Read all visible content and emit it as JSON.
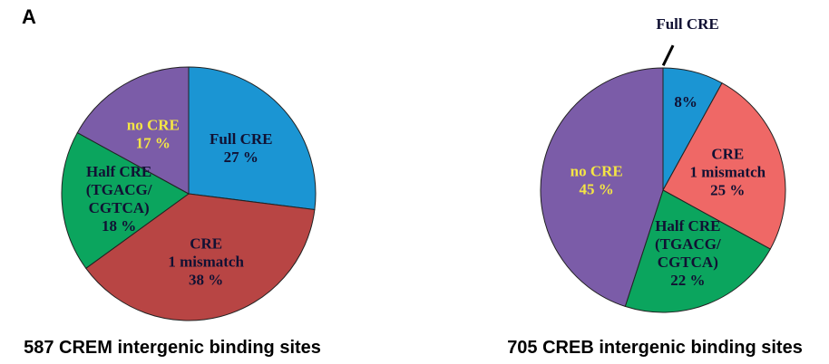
{
  "panel_label": "A",
  "chart_data": [
    {
      "type": "pie",
      "title": "587 CREM intergenic binding sites",
      "categories": [
        "Full CRE",
        "CRE\n1 mismatch",
        "Half CRE\n(TGACG/\nCGTCA)",
        "no CRE"
      ],
      "values": [
        27,
        38,
        18,
        17
      ],
      "value_labels": [
        "27 %",
        "38 %",
        "18 %",
        "17 %"
      ],
      "colors": [
        "#1b95d3",
        "#b84544",
        "#0ba55e",
        "#7b5ca8"
      ],
      "label_colors": [
        "#111133",
        "#111133",
        "#111133",
        "#f4e545"
      ]
    },
    {
      "type": "pie",
      "title": "705 CREB intergenic binding sites",
      "categories": [
        "Full CRE",
        "CRE\n1 mismatch",
        "Half CRE\n(TGACG/\nCGTCA)",
        "no CRE"
      ],
      "values": [
        8,
        25,
        22,
        45
      ],
      "value_labels": [
        "8%",
        "25 %",
        "22 %",
        "45 %"
      ],
      "colors": [
        "#1b95d3",
        "#ef6866",
        "#0ba55e",
        "#7b5ca8"
      ],
      "label_colors": [
        "#111133",
        "#111133",
        "#111133",
        "#f4e545"
      ]
    }
  ]
}
